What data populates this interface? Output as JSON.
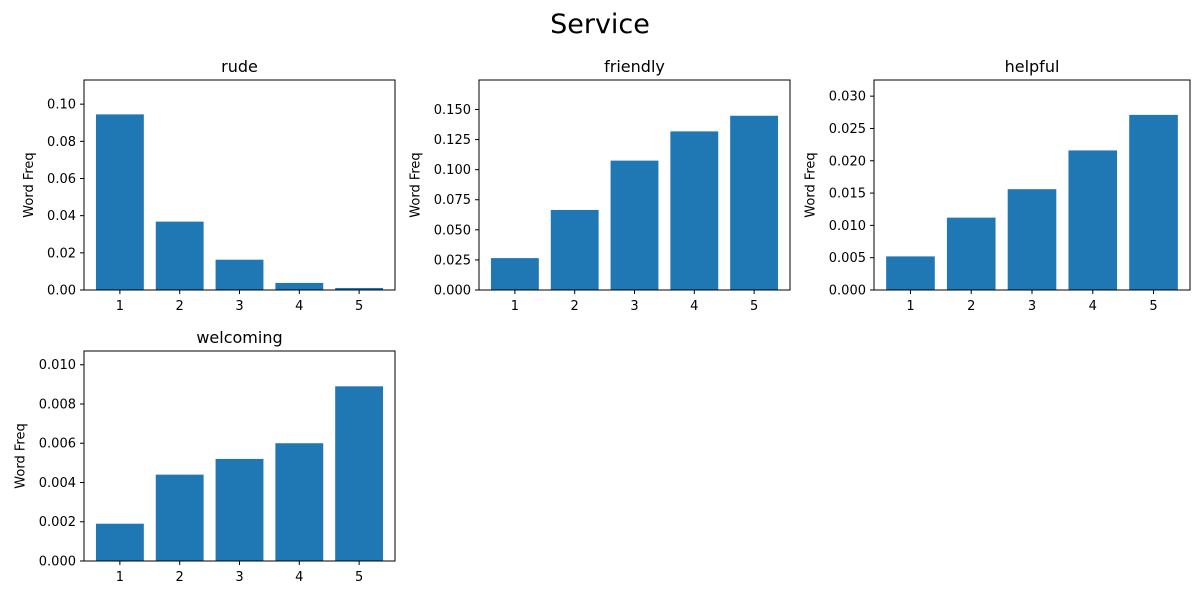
{
  "figure_title": "Service",
  "chart_data": [
    {
      "type": "bar",
      "title": "rude",
      "xlabel": "",
      "ylabel": "Word Freq",
      "categories": [
        "1",
        "2",
        "3",
        "4",
        "5"
      ],
      "values": [
        0.0945,
        0.0368,
        0.0163,
        0.0038,
        0.0011
      ],
      "ylim": [
        0,
        0.113
      ],
      "yticks": [
        0.0,
        0.02,
        0.04,
        0.06,
        0.08,
        0.1
      ],
      "ytick_labels": [
        "0.00",
        "0.02",
        "0.04",
        "0.06",
        "0.08",
        "0.10"
      ],
      "color": "#1f77b4",
      "grid": false
    },
    {
      "type": "bar",
      "title": "friendly",
      "xlabel": "",
      "ylabel": "Word Freq",
      "categories": [
        "1",
        "2",
        "3",
        "4",
        "5"
      ],
      "values": [
        0.0265,
        0.0665,
        0.1075,
        0.1318,
        0.1448
      ],
      "ylim": [
        0,
        0.1745
      ],
      "yticks": [
        0.0,
        0.025,
        0.05,
        0.075,
        0.1,
        0.125,
        0.15
      ],
      "ytick_labels": [
        "0.000",
        "0.025",
        "0.050",
        "0.075",
        "0.100",
        "0.125",
        "0.150"
      ],
      "color": "#1f77b4",
      "grid": false
    },
    {
      "type": "bar",
      "title": "helpful",
      "xlabel": "",
      "ylabel": "Word Freq",
      "categories": [
        "1",
        "2",
        "3",
        "4",
        "5"
      ],
      "values": [
        0.0052,
        0.0112,
        0.0156,
        0.0216,
        0.0271
      ],
      "ylim": [
        0,
        0.0325
      ],
      "yticks": [
        0.0,
        0.005,
        0.01,
        0.015,
        0.02,
        0.025,
        0.03
      ],
      "ytick_labels": [
        "0.000",
        "0.005",
        "0.010",
        "0.015",
        "0.020",
        "0.025",
        "0.030"
      ],
      "color": "#1f77b4",
      "grid": false
    },
    {
      "type": "bar",
      "title": "welcoming",
      "xlabel": "",
      "ylabel": "Word Freq",
      "categories": [
        "1",
        "2",
        "3",
        "4",
        "5"
      ],
      "values": [
        0.0019,
        0.0044,
        0.0052,
        0.006,
        0.0089
      ],
      "ylim": [
        0,
        0.0107
      ],
      "yticks": [
        0.0,
        0.002,
        0.004,
        0.006,
        0.008,
        0.01
      ],
      "ytick_labels": [
        "0.000",
        "0.002",
        "0.004",
        "0.006",
        "0.008",
        "0.010"
      ],
      "color": "#1f77b4",
      "grid": false
    }
  ]
}
